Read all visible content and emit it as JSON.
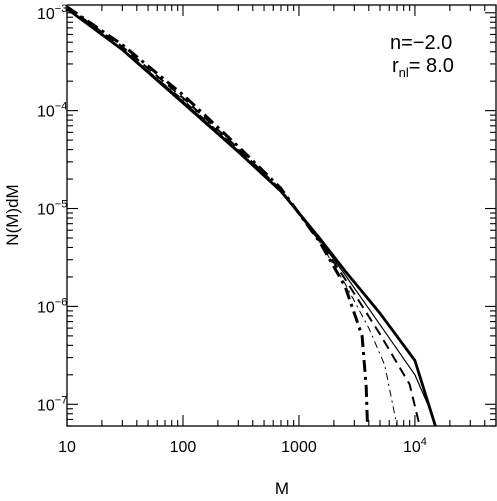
{
  "chart_data": {
    "type": "line",
    "title": "",
    "xlabel": "M",
    "ylabel": "N(M)dM",
    "xscale": "log",
    "yscale": "log",
    "xlim": [
      10,
      50000
    ],
    "ylim": [
      6e-08,
      0.0012
    ],
    "x_ticks": [
      {
        "value": 10,
        "label": "10"
      },
      {
        "value": 100,
        "label": "100"
      },
      {
        "value": 1000,
        "label": "1000"
      },
      {
        "value": 10000,
        "base": "10",
        "exp": "4"
      }
    ],
    "y_ticks": [
      {
        "value": 1e-07,
        "base": "10",
        "exp": "−7"
      },
      {
        "value": 1e-06,
        "base": "10",
        "exp": "−6"
      },
      {
        "value": 1e-05,
        "base": "10",
        "exp": "−5"
      },
      {
        "value": 0.0001,
        "base": "10",
        "exp": "−4"
      },
      {
        "value": 0.001,
        "base": "10",
        "exp": "−3"
      }
    ],
    "annotations": [
      {
        "text": "n=−2.0"
      },
      {
        "r": "r",
        "sub": "nl",
        "rest": "=  8.0"
      }
    ],
    "series": [
      {
        "style": "thick-solid",
        "x": [
          10,
          30,
          100,
          300,
          700,
          1500,
          2500,
          5000,
          10000,
          15000
        ],
        "y": [
          0.0011,
          0.00042,
          0.00012,
          3.8e-05,
          1.5e-05,
          5e-06,
          2.3e-06,
          8.5e-07,
          2.8e-07,
          6e-08
        ]
      },
      {
        "style": "thin-solid",
        "x": [
          10,
          30,
          100,
          300,
          700,
          1500,
          2500,
          5000,
          10000,
          14000
        ],
        "y": [
          0.0011,
          0.00043,
          0.000125,
          3.9e-05,
          1.5e-05,
          4.8e-06,
          2.1e-06,
          6.5e-07,
          2e-07,
          8e-08
        ]
      },
      {
        "style": "dash",
        "x": [
          10,
          30,
          100,
          300,
          700,
          1500,
          2500,
          5000,
          9000,
          11000
        ],
        "y": [
          0.00115,
          0.00045,
          0.000135,
          4.1e-05,
          1.55e-05,
          4.7e-06,
          1.9e-06,
          5.2e-07,
          1.6e-07,
          6e-08
        ]
      },
      {
        "style": "dash-dot",
        "x": [
          10,
          30,
          100,
          300,
          700,
          1500,
          2500,
          3500,
          3800,
          3900
        ],
        "y": [
          0.00115,
          0.00047,
          0.000145,
          4.3e-05,
          1.6e-05,
          4.6e-06,
          1.6e-06,
          5e-07,
          1.5e-07,
          6e-08
        ]
      },
      {
        "style": "thin-dash-dot",
        "x": [
          10,
          30,
          100,
          300,
          700,
          1500,
          2500,
          4000,
          5500,
          7000
        ],
        "y": [
          0.0011,
          0.00042,
          0.00013,
          4e-05,
          1.5e-05,
          4.6e-06,
          1.7e-06,
          6e-07,
          2.5e-07,
          6e-08
        ]
      }
    ]
  }
}
